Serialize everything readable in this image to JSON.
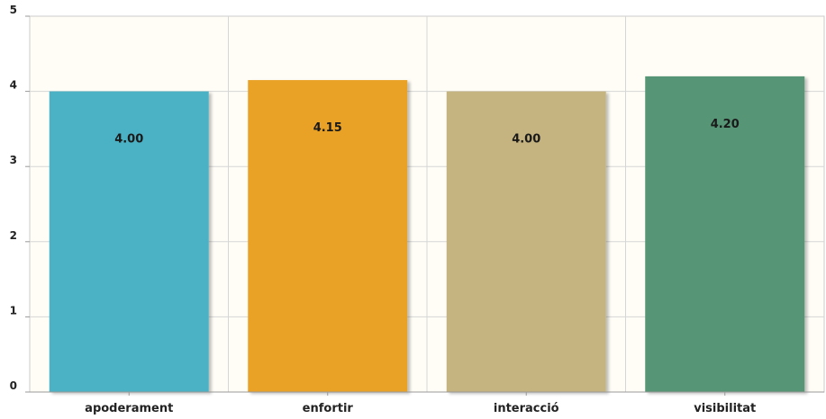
{
  "chart_data": {
    "type": "bar",
    "categories": [
      "apoderament",
      "enfortir",
      "interacció",
      "visibilitat"
    ],
    "values": [
      4.0,
      4.15,
      4.0,
      4.2
    ],
    "value_labels": [
      "4.00",
      "4.15",
      "4.00",
      "4.20"
    ],
    "colors": [
      "#4bb2c5",
      "#eaa228",
      "#c5b47f",
      "#579575"
    ],
    "ylim": [
      0,
      5
    ],
    "yticks": [
      0,
      1,
      2,
      3,
      4,
      5
    ],
    "grid": true,
    "background": "#fffdf6",
    "title": "",
    "xlabel": "",
    "ylabel": ""
  }
}
